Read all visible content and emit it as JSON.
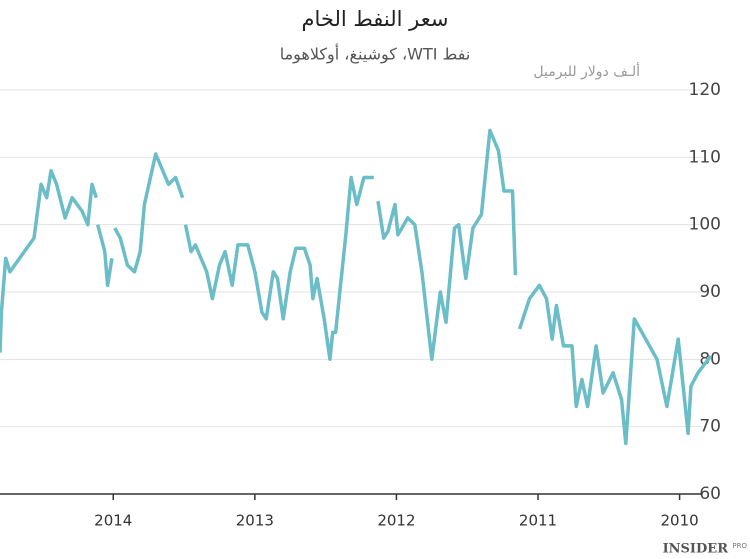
{
  "chart_data": {
    "type": "line",
    "title": "سعر النفط الخام",
    "subtitle": "نفط WTI، كوشينغ، أوكلاهوما",
    "y_label": "ألـف دولار للبرميل",
    "logo": "INSIDER",
    "logo_suffix": "PRO",
    "color": "#6bbdc8",
    "grid": true,
    "xlim": [
      2014.8,
      2009.75
    ],
    "xticks": [
      2014,
      2013,
      2012,
      2011,
      2010
    ],
    "ylim": [
      60,
      120
    ],
    "yticks": [
      60,
      70,
      80,
      90,
      100,
      110,
      120
    ],
    "x": [
      2009.78,
      2009.87,
      2009.92,
      2009.94,
      2010.01,
      2010.09,
      2010.16,
      2010.32,
      2010.38,
      2010.41,
      2010.47,
      2010.54,
      2010.59,
      2010.65,
      2010.69,
      2010.73,
      2010.76,
      2010.82,
      2010.87,
      2010.9,
      2010.94,
      2010.99,
      2011.06,
      2011.13,
      null,
      2011.16,
      2011.18,
      2011.24,
      2011.28,
      2011.34,
      2011.4,
      2011.46,
      2011.51,
      2011.56,
      2011.59,
      2011.65,
      2011.69,
      2011.75,
      2011.82,
      2011.87,
      2011.92,
      2011.99,
      2012.01,
      2012.06,
      2012.09,
      2012.13,
      null,
      2012.16,
      2012.23,
      2012.28,
      2012.32,
      2012.36,
      2012.4,
      2012.43,
      2012.45,
      2012.47,
      2012.51,
      2012.56,
      2012.59,
      2012.61,
      2012.65,
      2012.71,
      2012.75,
      2012.8,
      2012.84,
      2012.87,
      2012.92,
      2012.95,
      2013.0,
      2013.05,
      2013.12,
      2013.16,
      2013.21,
      2013.25,
      2013.3,
      2013.34,
      2013.38,
      2013.42,
      2013.45,
      2013.49,
      null,
      2013.51,
      2013.56,
      2013.61,
      2013.7,
      2013.78,
      2013.81,
      2013.85,
      2013.9,
      2013.95,
      2013.99,
      null,
      2014.01,
      2014.04,
      2014.06,
      2014.11,
      null,
      2014.12,
      2014.15,
      2014.18,
      2014.22,
      2014.29,
      2014.34,
      2014.4,
      2014.44,
      2014.47,
      2014.51,
      2014.56,
      2014.73,
      2014.76,
      2014.79,
      2014.8
    ],
    "values": [
      80.5,
      78,
      76,
      69,
      83,
      73,
      80,
      86,
      67.5,
      74,
      78,
      75,
      82,
      73,
      77,
      73,
      82,
      82,
      88,
      83,
      89,
      91,
      89,
      84.5,
      null,
      92.5,
      105,
      105,
      111,
      114,
      101.5,
      99.5,
      92,
      100,
      99.5,
      85.5,
      90,
      80,
      93,
      100,
      101,
      98.5,
      103,
      99,
      98,
      103.5,
      null,
      107,
      107,
      103,
      107,
      98,
      90,
      84,
      84,
      80,
      86,
      92,
      89,
      94,
      96.5,
      96.5,
      93,
      86,
      92,
      93,
      86,
      87,
      93,
      97,
      97,
      91,
      96,
      94,
      89,
      93,
      95,
      97,
      96,
      100,
      null,
      104,
      107,
      106,
      110.5,
      103,
      96,
      93,
      94,
      98,
      99.5,
      null,
      95,
      91,
      96,
      100,
      null,
      104,
      106,
      100,
      102,
      104,
      101,
      106,
      108,
      104,
      106,
      98,
      93,
      95,
      87,
      81
    ]
  }
}
